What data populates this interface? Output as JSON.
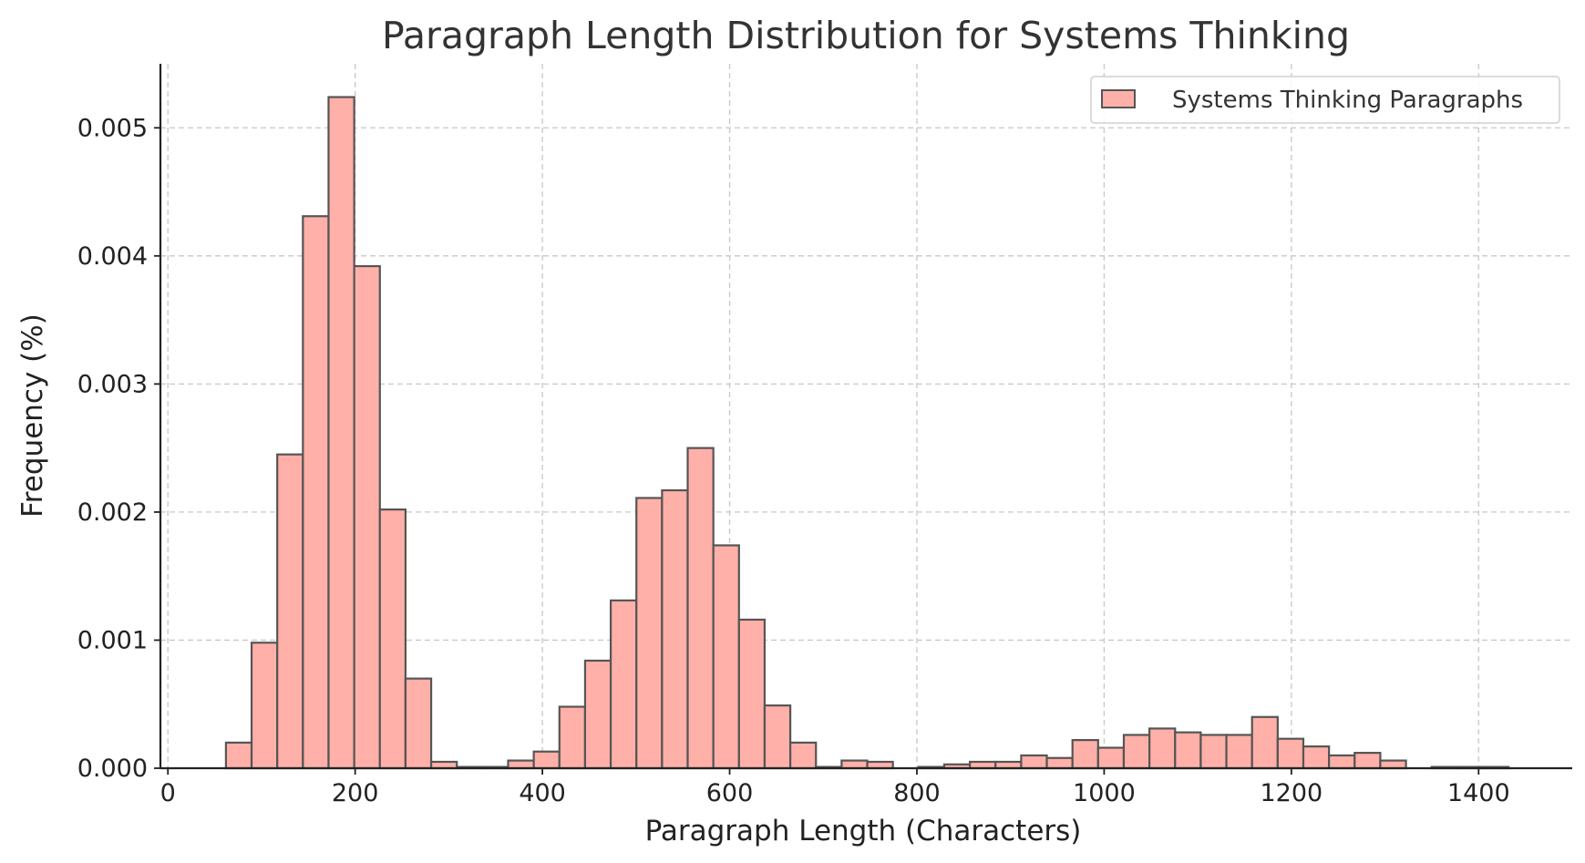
{
  "chart_data": {
    "type": "bar",
    "title": "Paragraph Length Distribution for Systems Thinking",
    "xlabel": "Paragraph Length (Characters)",
    "ylabel": "Frequency (%)",
    "xlim": [
      -8,
      1500
    ],
    "ylim": [
      0,
      0.0055
    ],
    "xticks": [
      0,
      200,
      400,
      600,
      800,
      1000,
      1200,
      1400
    ],
    "xtick_labels": [
      "0",
      "200",
      "400",
      "600",
      "800",
      "1000",
      "1200",
      "1400"
    ],
    "yticks": [
      0,
      0.001,
      0.002,
      0.003,
      0.004,
      0.005
    ],
    "ytick_labels": [
      "0.000",
      "0.001",
      "0.002",
      "0.003",
      "0.004",
      "0.005"
    ],
    "grid": true,
    "legend": {
      "position": "top-right"
    },
    "series": [
      {
        "name": "Systems Thinking Paragraphs",
        "color": "#ffb0a8",
        "edgecolor": "#555555",
        "bin_edges": [
          62,
          89.4,
          116.8,
          144.2,
          171.6,
          199,
          226.4,
          253.8,
          281.2,
          308.6,
          336,
          363.4,
          390.8,
          418.2,
          445.6,
          473,
          500.4,
          527.8,
          555.2,
          582.6,
          610,
          637.4,
          664.8,
          692.2,
          719.6,
          747,
          774.4,
          801.8,
          829.2,
          856.6,
          884,
          911.4,
          938.8,
          966.2,
          993.6,
          1021,
          1048.4,
          1075.8,
          1103.2,
          1130.6,
          1158,
          1185.4,
          1212.8,
          1240.2,
          1267.6,
          1295,
          1322.4,
          1349.8,
          1377.2,
          1404.6,
          1432
        ],
        "values": [
          0.0002,
          0.00098,
          0.00245,
          0.00431,
          0.00524,
          0.00392,
          0.00202,
          0.0007,
          5e-05,
          1e-05,
          1e-05,
          6e-05,
          0.00013,
          0.00048,
          0.00084,
          0.00131,
          0.00211,
          0.00217,
          0.0025,
          0.00174,
          0.00116,
          0.00049,
          0.0002,
          1e-05,
          6e-05,
          5e-05,
          0,
          1e-05,
          3e-05,
          5e-05,
          5e-05,
          0.0001,
          8e-05,
          0.00022,
          0.00016,
          0.00026,
          0.00031,
          0.00028,
          0.00026,
          0.00026,
          0.0004,
          0.00023,
          0.00017,
          0.0001,
          0.00012,
          6e-05,
          0,
          1e-05,
          1e-05,
          1e-05
        ]
      }
    ]
  }
}
